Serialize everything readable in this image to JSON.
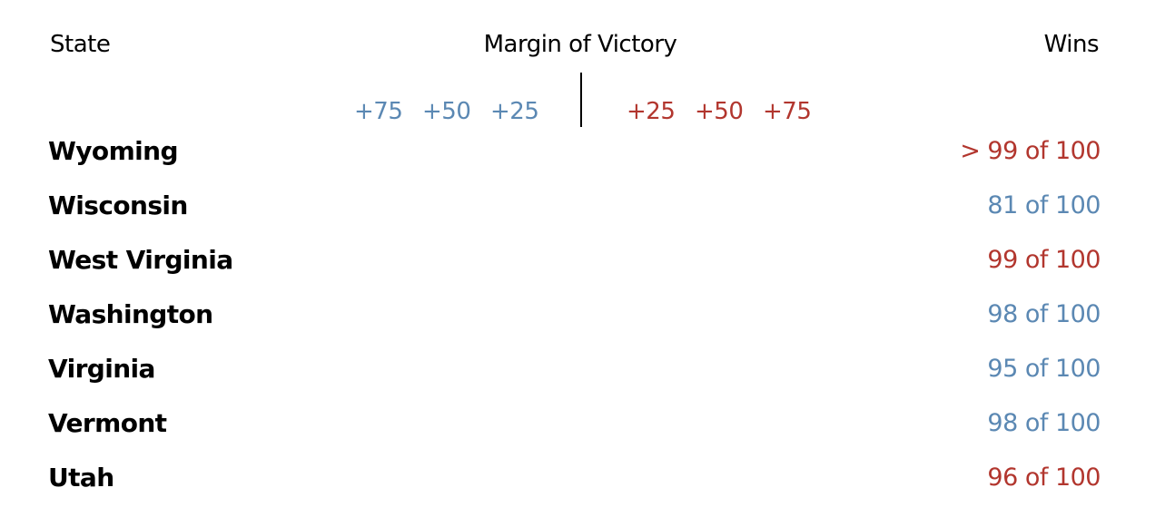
{
  "colors": {
    "dem": "#5b88b3",
    "rep": "#b2362e",
    "text": "#000000"
  },
  "headers": {
    "state": "State",
    "margin": "Margin of Victory",
    "wins": "Wins"
  },
  "chart_data": {
    "type": "table",
    "axis_ticks_left": [
      "+75",
      "+50",
      "+25"
    ],
    "axis_ticks_right": [
      "+25",
      "+50",
      "+75"
    ],
    "axis_values_left": [
      75,
      50,
      25
    ],
    "axis_values_right": [
      25,
      50,
      75
    ],
    "columns": [
      "State",
      "Margin of Victory",
      "Wins"
    ],
    "rows": [
      {
        "state": "Wyoming",
        "wins": "> 99 of 100",
        "party": "rep"
      },
      {
        "state": "Wisconsin",
        "wins": "81 of 100",
        "party": "dem"
      },
      {
        "state": "West Virginia",
        "wins": "99 of 100",
        "party": "rep"
      },
      {
        "state": "Washington",
        "wins": "98 of 100",
        "party": "dem"
      },
      {
        "state": "Virginia",
        "wins": "95 of 100",
        "party": "dem"
      },
      {
        "state": "Vermont",
        "wins": "98 of 100",
        "party": "dem"
      },
      {
        "state": "Utah",
        "wins": "96 of 100",
        "party": "rep"
      }
    ]
  }
}
